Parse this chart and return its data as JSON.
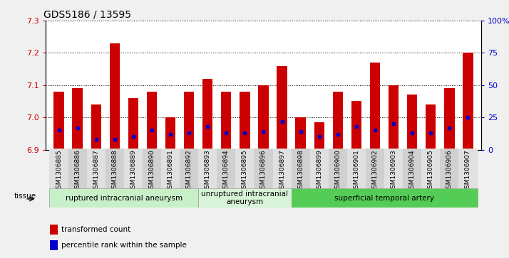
{
  "title": "GDS5186 / 13595",
  "samples": [
    "GSM1306885",
    "GSM1306886",
    "GSM1306887",
    "GSM1306888",
    "GSM1306889",
    "GSM1306890",
    "GSM1306891",
    "GSM1306892",
    "GSM1306893",
    "GSM1306894",
    "GSM1306895",
    "GSM1306896",
    "GSM1306897",
    "GSM1306898",
    "GSM1306899",
    "GSM1306900",
    "GSM1306901",
    "GSM1306902",
    "GSM1306903",
    "GSM1306904",
    "GSM1306905",
    "GSM1306906",
    "GSM1306907"
  ],
  "transformed_count": [
    7.08,
    7.09,
    7.04,
    7.23,
    7.06,
    7.08,
    7.0,
    7.08,
    7.12,
    7.08,
    7.08,
    7.1,
    7.16,
    7.0,
    6.985,
    7.08,
    7.05,
    7.17,
    7.1,
    7.07,
    7.04,
    7.09,
    7.2
  ],
  "percentile_rank": [
    15,
    17,
    8,
    8,
    10,
    15,
    12,
    13,
    18,
    13,
    13,
    14,
    22,
    14,
    10,
    12,
    18,
    15,
    20,
    13,
    13,
    17,
    25
  ],
  "ylim_left": [
    6.9,
    7.3
  ],
  "ylim_right": [
    0,
    100
  ],
  "yticks_left": [
    6.9,
    7.0,
    7.1,
    7.2,
    7.3
  ],
  "yticks_right": [
    0,
    25,
    50,
    75,
    100
  ],
  "ytick_labels_right": [
    "0",
    "25",
    "50",
    "75",
    "100%"
  ],
  "bar_color": "#cc0000",
  "dot_color": "#0000cc",
  "baseline": 6.9,
  "groups": [
    {
      "label": "ruptured intracranial aneurysm",
      "start": 0,
      "end": 8,
      "color": "#c8f0c8"
    },
    {
      "label": "unruptured intracranial\naneurysm",
      "start": 8,
      "end": 13,
      "color": "#d8f4d8"
    },
    {
      "label": "superficial temporal artery",
      "start": 13,
      "end": 23,
      "color": "#55cc55"
    }
  ],
  "tissue_label": "tissue",
  "legend_items": [
    {
      "label": "transformed count",
      "color": "#cc0000"
    },
    {
      "label": "percentile rank within the sample",
      "color": "#0000cc"
    }
  ],
  "background_color": "#f0f0f0",
  "plot_bg": "#ffffff",
  "title_fontsize": 10,
  "label_fontsize": 6.5,
  "group_fontsize": 7.5,
  "legend_fontsize": 7.5
}
